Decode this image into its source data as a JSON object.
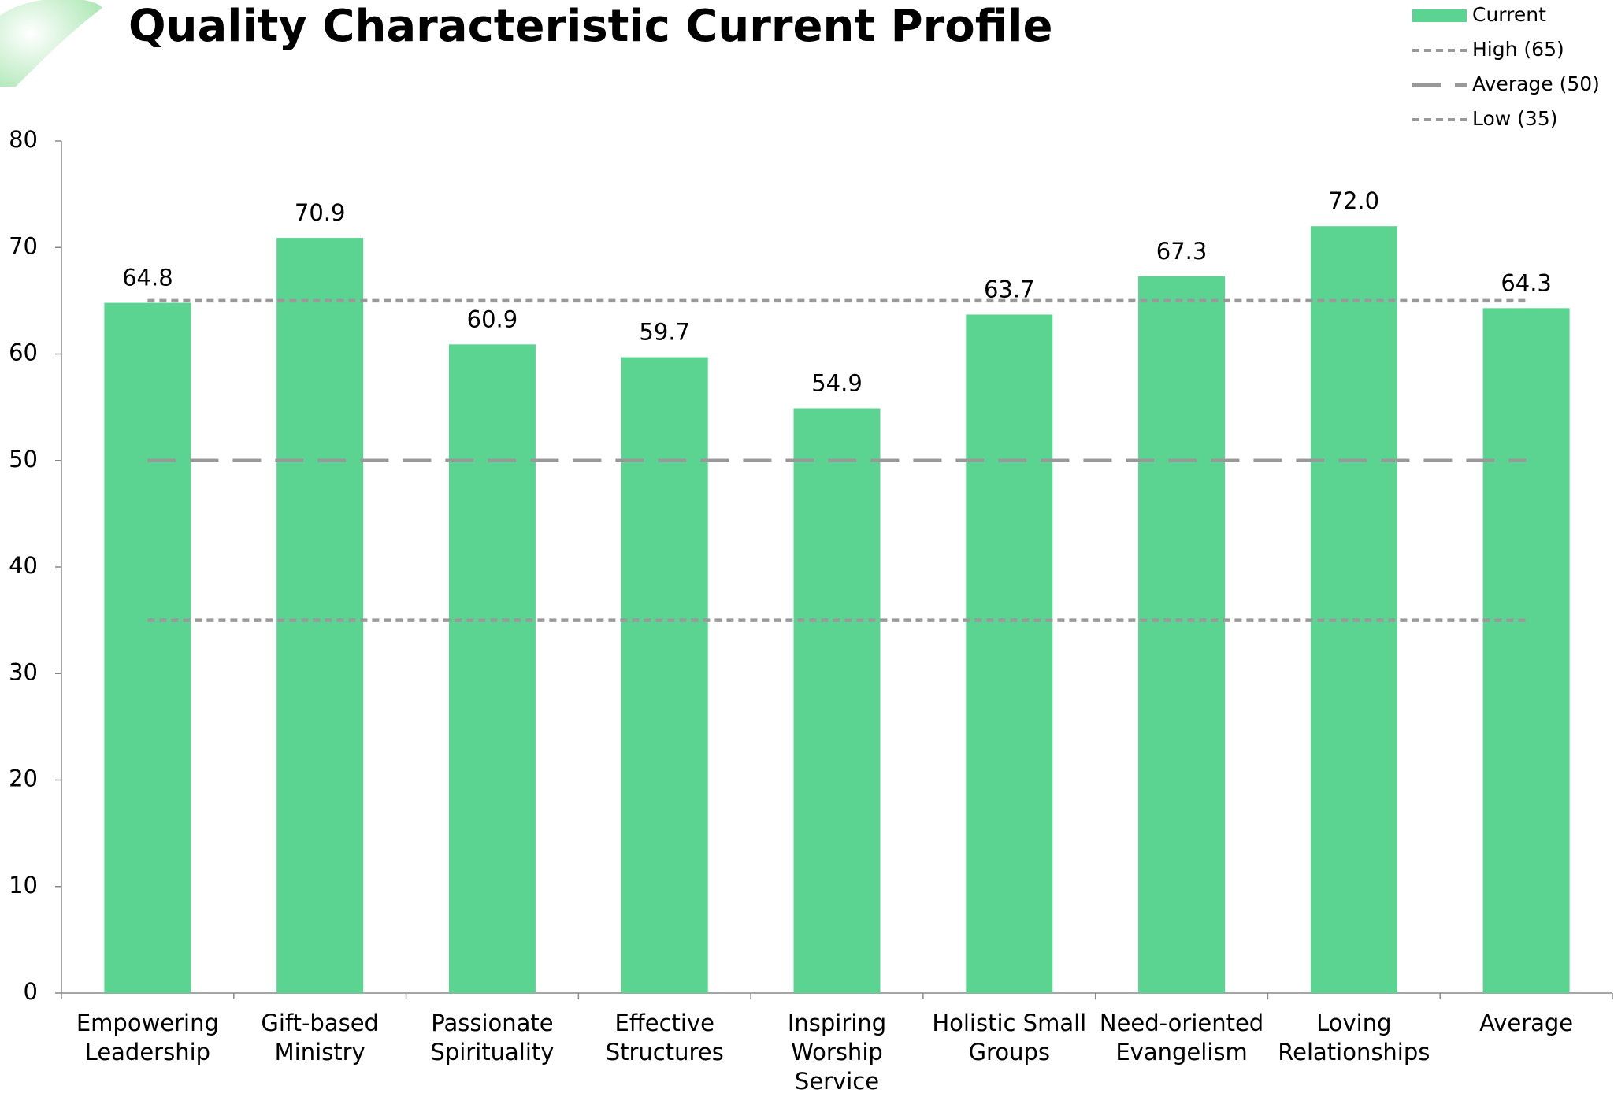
{
  "chart_data": {
    "type": "bar",
    "title": "Quality Characteristic Current Profile",
    "categories": [
      "Empowering Leadership",
      "Gift-based Ministry",
      "Passionate Spirituality",
      "Effective Structures",
      "Inspiring Worship Service",
      "Holistic Small Groups",
      "Need-oriented Evangelism",
      "Loving Relationships",
      "Average"
    ],
    "series": [
      {
        "name": "Current",
        "type": "bar",
        "color": "#5ad490",
        "values": [
          64.8,
          70.9,
          60.9,
          59.7,
          54.9,
          63.7,
          67.3,
          72.0,
          64.3
        ],
        "value_labels": [
          "64.8",
          "70.9",
          "60.9",
          "59.7",
          "54.9",
          "63.7",
          "67.3",
          "72.0",
          "64.3"
        ]
      },
      {
        "name": "High (65)",
        "type": "line",
        "color": "#999999",
        "dash": "short",
        "values": [
          65,
          65,
          65,
          65,
          65,
          65,
          65,
          65,
          65
        ]
      },
      {
        "name": "Average (50)",
        "type": "line",
        "color": "#999999",
        "dash": "long",
        "values": [
          50,
          50,
          50,
          50,
          50,
          50,
          50,
          50,
          50
        ]
      },
      {
        "name": "Low (35)",
        "type": "line",
        "color": "#999999",
        "dash": "short",
        "values": [
          35,
          35,
          35,
          35,
          35,
          35,
          35,
          35,
          35
        ]
      }
    ],
    "ylim": [
      0,
      80
    ],
    "yticks": [
      0,
      10,
      20,
      30,
      40,
      50,
      60,
      70,
      80
    ],
    "grid": false,
    "legend": "top-right"
  }
}
